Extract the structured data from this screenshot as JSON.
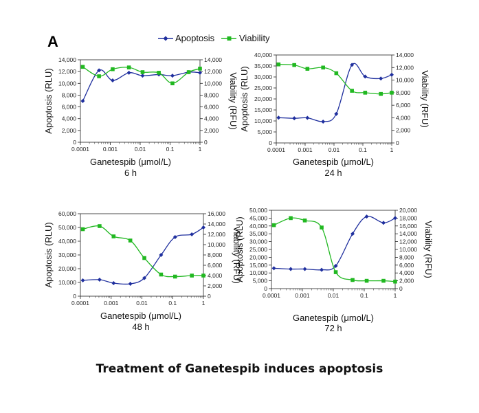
{
  "figure": {
    "panel_letter": "A",
    "caption": "Treatment of Ganetespib induces apoptosis",
    "legend": {
      "apoptosis_label": "Apoptosis",
      "viability_label": "Viability"
    }
  },
  "colors": {
    "apoptosis": "#1f2f9e",
    "viability": "#21b821"
  },
  "chart_data": [
    {
      "type": "line",
      "time_label": "6 h",
      "xlabel": "Ganetespib (μmol/L)",
      "ylabel_left": "Apoptosis (RLU)",
      "ylabel_right": "Viability (RFU)",
      "x_scale": "log",
      "xlim": [
        0.0001,
        1
      ],
      "x_ticks": [
        "0.0001",
        "0.001",
        "0.01",
        "0.1",
        "1"
      ],
      "ylim_left": [
        0,
        14000
      ],
      "yticks_left": [
        "0",
        "2,000",
        "4,000",
        "6,000",
        "8,000",
        "10,000",
        "12,000",
        "14,000"
      ],
      "ylim_right": [
        0,
        14000
      ],
      "yticks_right": [
        "0",
        "2,000",
        "4,000",
        "6,000",
        "8,000",
        "10,000",
        "12,000",
        "14,000"
      ],
      "series": [
        {
          "name": "Apoptosis",
          "axis": "left",
          "marker": "diamond",
          "x": [
            0.00012,
            0.00042,
            0.0012,
            0.0042,
            0.012,
            0.042,
            0.12,
            0.42,
            1
          ],
          "y": [
            7000,
            12200,
            10500,
            11800,
            11300,
            11500,
            11300,
            11900,
            11800
          ]
        },
        {
          "name": "Viability",
          "axis": "right",
          "marker": "square",
          "x": [
            0.00012,
            0.00042,
            0.0012,
            0.0042,
            0.012,
            0.042,
            0.12,
            0.42,
            1
          ],
          "y": [
            12800,
            11200,
            12400,
            12700,
            11900,
            11800,
            10000,
            11900,
            12500
          ]
        }
      ]
    },
    {
      "type": "line",
      "time_label": "24 h",
      "xlabel": "Ganetespib (μmol/L)",
      "ylabel_left": "Apoptosis (RLU)",
      "ylabel_right": "Viability (RFU)",
      "x_scale": "log",
      "xlim": [
        0.0001,
        1
      ],
      "x_ticks": [
        "0.0001",
        "0.001",
        "0.01",
        "0.1",
        "1"
      ],
      "ylim_left": [
        0,
        40000
      ],
      "yticks_left": [
        "0",
        "5,000",
        "10,000",
        "15,000",
        "20,000",
        "25,000",
        "30,000",
        "35,000",
        "40,000"
      ],
      "ylim_right": [
        0,
        14000
      ],
      "yticks_right": [
        "0",
        "2,000",
        "4,000",
        "6,000",
        "8,000",
        "10,000",
        "12,000",
        "14,000"
      ],
      "series": [
        {
          "name": "Apoptosis",
          "axis": "left",
          "marker": "diamond",
          "x": [
            0.00012,
            0.00042,
            0.0012,
            0.0042,
            0.012,
            0.042,
            0.12,
            0.42,
            1
          ],
          "y": [
            11500,
            11200,
            11400,
            9700,
            13200,
            35500,
            30200,
            29300,
            31000
          ]
        },
        {
          "name": "Viability",
          "axis": "right",
          "marker": "square",
          "x": [
            0.00012,
            0.00042,
            0.0012,
            0.0042,
            0.012,
            0.042,
            0.12,
            0.42,
            1
          ],
          "y": [
            12500,
            12400,
            11800,
            12000,
            11100,
            8300,
            8000,
            7800,
            8000
          ]
        }
      ]
    },
    {
      "type": "line",
      "time_label": "48 h",
      "xlabel": "Ganetespib (μmol/L)",
      "ylabel_left": "Apoptosis (RLU)",
      "ylabel_right": "Viability (RFU)",
      "x_scale": "log",
      "xlim": [
        0.0001,
        1
      ],
      "x_ticks": [
        "0.0001",
        "0.001",
        "0.01",
        "0.1",
        "1"
      ],
      "ylim_left": [
        0,
        60000
      ],
      "yticks_left": [
        "0",
        "10,000",
        "20,000",
        "30,000",
        "40,000",
        "50,000",
        "60,000"
      ],
      "ylim_right": [
        0,
        16000
      ],
      "yticks_right": [
        "0",
        "2,000",
        "4,000",
        "6,000",
        "8,000",
        "10,000",
        "12,000",
        "14,000",
        "16,000"
      ],
      "series": [
        {
          "name": "Apoptosis",
          "axis": "left",
          "marker": "diamond",
          "x": [
            0.00012,
            0.00042,
            0.0012,
            0.0042,
            0.012,
            0.042,
            0.12,
            0.42,
            1
          ],
          "y": [
            11500,
            12000,
            9500,
            9000,
            13200,
            30000,
            43000,
            45000,
            50000
          ]
        },
        {
          "name": "Viability",
          "axis": "right",
          "marker": "square",
          "x": [
            0.00012,
            0.00042,
            0.0012,
            0.0042,
            0.012,
            0.042,
            0.12,
            0.42,
            1
          ],
          "y": [
            13000,
            13600,
            11600,
            10800,
            7400,
            4200,
            3800,
            4000,
            4000
          ]
        }
      ]
    },
    {
      "type": "line",
      "time_label": "72 h",
      "xlabel": "Ganetespib (μmol/L)",
      "ylabel_left": "Apoptosis (RLU)",
      "ylabel_right": "Viability (RFU)",
      "x_scale": "log",
      "xlim": [
        0.0001,
        1
      ],
      "x_ticks": [
        "0.0001",
        "0.001",
        "0.01",
        "0.1",
        "1"
      ],
      "ylim_left": [
        0,
        50000
      ],
      "yticks_left": [
        "0",
        "5,000",
        "10,000",
        "15,000",
        "20,000",
        "25,000",
        "30,000",
        "35,000",
        "40,000",
        "45,000",
        "50,000"
      ],
      "ylim_right": [
        0,
        20000
      ],
      "yticks_right": [
        "0",
        "2,000",
        "4,000",
        "6,000",
        "8,000",
        "10,000",
        "12,000",
        "14,000",
        "16,000",
        "18,000",
        "20,000"
      ],
      "series": [
        {
          "name": "Apoptosis",
          "axis": "left",
          "marker": "diamond",
          "x": [
            0.00012,
            0.00042,
            0.0012,
            0.0042,
            0.012,
            0.042,
            0.12,
            0.42,
            1
          ],
          "y": [
            13000,
            12500,
            12500,
            12000,
            14500,
            35000,
            46000,
            42000,
            45000
          ]
        },
        {
          "name": "Viability",
          "axis": "right",
          "marker": "square",
          "x": [
            0.00012,
            0.00042,
            0.0012,
            0.0042,
            0.012,
            0.042,
            0.12,
            0.42,
            1
          ],
          "y": [
            16200,
            18000,
            17400,
            15600,
            4200,
            2200,
            2000,
            2000,
            1800
          ]
        }
      ]
    }
  ]
}
